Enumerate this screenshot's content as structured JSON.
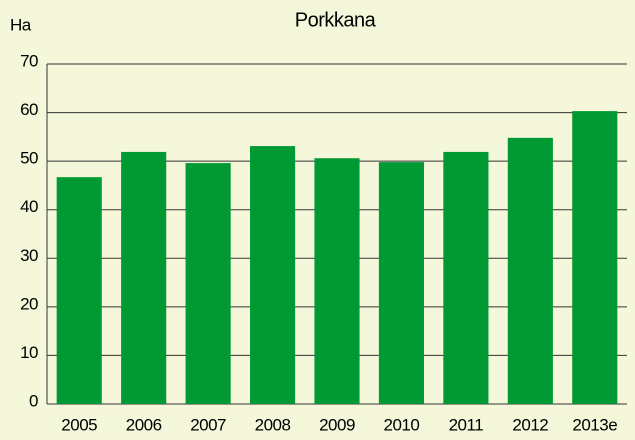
{
  "chart_data": {
    "type": "bar",
    "title": "Porkkana",
    "y_label": "Ha",
    "categories": [
      "2005",
      "2006",
      "2007",
      "2008",
      "2009",
      "2010",
      "2011",
      "2012",
      "2013e"
    ],
    "values": [
      46.7,
      51.9,
      49.6,
      53.1,
      50.6,
      49.8,
      51.9,
      54.8,
      60.3
    ],
    "color": "#009933",
    "ylim": [
      0,
      70
    ],
    "yticks": [
      0,
      10,
      20,
      30,
      40,
      50,
      60,
      70
    ],
    "grid": true
  }
}
